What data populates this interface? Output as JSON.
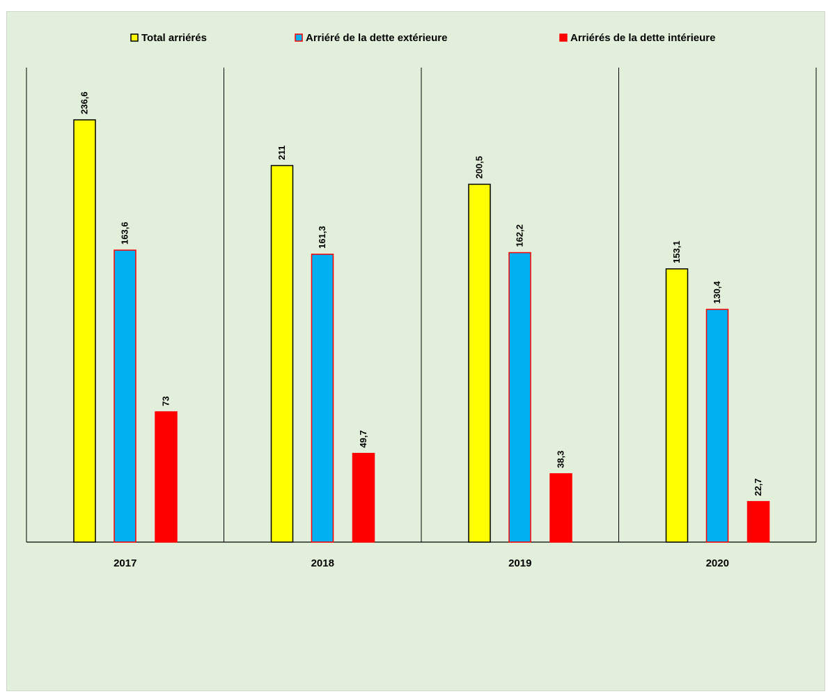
{
  "chart_data": {
    "type": "bar",
    "categories": [
      "2017",
      "2018",
      "2019",
      "2020"
    ],
    "series": [
      {
        "name": "Total arriérés",
        "values": [
          236.6,
          211,
          200.5,
          153.1
        ],
        "labels": [
          "236,6",
          "211",
          "200,5",
          "153,1"
        ],
        "color": "#ffff00",
        "stroke": "#000000"
      },
      {
        "name": "Arriéré de la dette extérieure",
        "values": [
          163.6,
          161.3,
          162.2,
          130.4
        ],
        "labels": [
          "163,6",
          "161,3",
          "162,2",
          "130,4"
        ],
        "color": "#00b0f0",
        "stroke": "#ff0000"
      },
      {
        "name": "Arriérés de la dette intérieure",
        "values": [
          73,
          49.7,
          38.3,
          22.7
        ],
        "labels": [
          "73",
          "49,7",
          "38,3",
          "22,7"
        ],
        "color": "#ff0000",
        "stroke": "#ff0000"
      }
    ],
    "ylim": [
      0,
      290
    ],
    "legend_position": "top",
    "grid": false
  }
}
